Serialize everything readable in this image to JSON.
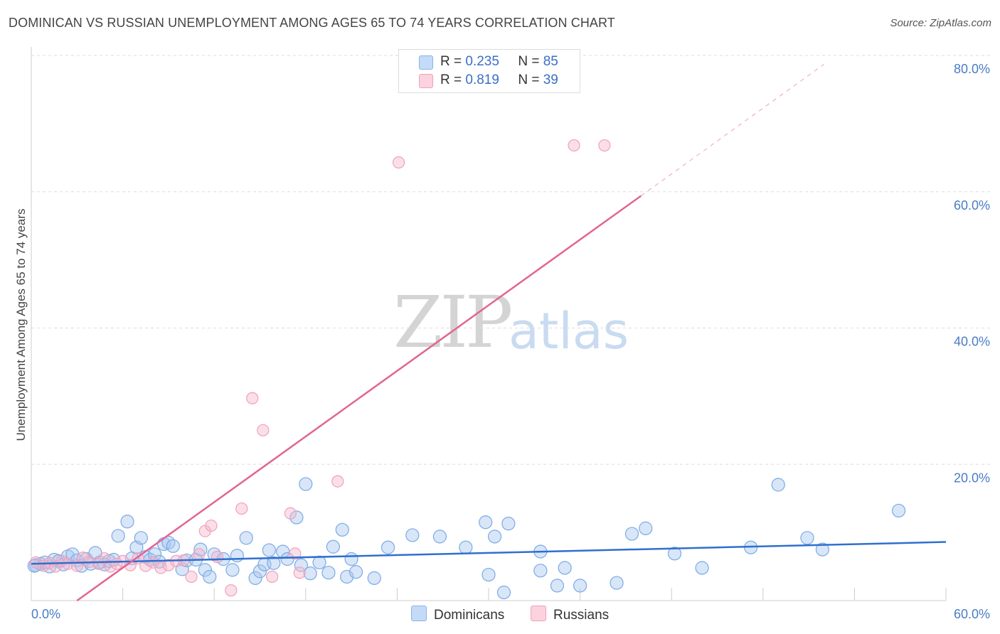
{
  "header": {
    "title": "DOMINICAN VS RUSSIAN UNEMPLOYMENT AMONG AGES 65 TO 74 YEARS CORRELATION CHART",
    "source": "Source: ZipAtlas.com"
  },
  "watermark": {
    "zip": "ZIP",
    "atlas": "atlas"
  },
  "legend": {
    "rows": [
      {
        "r_label": "R = ",
        "r_value": "0.235",
        "n_label": "N = ",
        "n_value": "85",
        "color": "#a8c8f0"
      },
      {
        "r_label": "R = ",
        "r_value": "0.819",
        "n_label": "N = ",
        "n_value": "39",
        "color": "#f5b8cc"
      }
    ]
  },
  "bottom_legend": [
    {
      "label": "Dominicans",
      "color": "#a8c8f0"
    },
    {
      "label": "Russians",
      "color": "#f5b8cc"
    }
  ],
  "chart_data": {
    "type": "scatter",
    "title": "DOMINICAN VS RUSSIAN UNEMPLOYMENT AMONG AGES 65 TO 74 YEARS CORRELATION CHART",
    "xlabel": "",
    "ylabel": "Unemployment Among Ages 65 to 74 years",
    "xlim": [
      0,
      60
    ],
    "ylim": [
      0,
      80
    ],
    "x_tick_labels": [
      "0.0%",
      "60.0%"
    ],
    "y_ticks": [
      20,
      40,
      60,
      80
    ],
    "y_tick_labels": [
      "20.0%",
      "40.0%",
      "60.0%",
      "80.0%"
    ],
    "grid": true,
    "legend_position": "top-center",
    "series": [
      {
        "name": "Dominicans",
        "color": "#7aaae6",
        "line_color": "#2f6fce",
        "trend": {
          "x": [
            0,
            60
          ],
          "y": [
            5.4,
            8.6
          ]
        },
        "points": [
          [
            0.3,
            5.2
          ],
          [
            0.6,
            5.4
          ],
          [
            0.9,
            5.6
          ],
          [
            1.2,
            5.0
          ],
          [
            1.5,
            6.0
          ],
          [
            1.8,
            5.8
          ],
          [
            2.1,
            5.3
          ],
          [
            2.4,
            6.5
          ],
          [
            2.7,
            6.8
          ],
          [
            3.0,
            5.9
          ],
          [
            3.3,
            5.1
          ],
          [
            3.6,
            6.1
          ],
          [
            3.9,
            5.4
          ],
          [
            4.2,
            7.0
          ],
          [
            4.5,
            5.6
          ],
          [
            4.8,
            5.3
          ],
          [
            5.1,
            5.8
          ],
          [
            5.4,
            6.0
          ],
          [
            5.7,
            9.5
          ],
          [
            6.3,
            11.6
          ],
          [
            6.6,
            6.2
          ],
          [
            6.9,
            7.8
          ],
          [
            7.2,
            9.2
          ],
          [
            7.5,
            6.4
          ],
          [
            7.8,
            6.0
          ],
          [
            8.1,
            6.8
          ],
          [
            8.4,
            5.7
          ],
          [
            8.7,
            8.3
          ],
          [
            9.0,
            8.5
          ],
          [
            9.3,
            8.0
          ],
          [
            9.9,
            4.6
          ],
          [
            10.2,
            5.9
          ],
          [
            10.8,
            6.0
          ],
          [
            11.1,
            7.5
          ],
          [
            11.4,
            4.5
          ],
          [
            11.7,
            3.5
          ],
          [
            12.0,
            6.8
          ],
          [
            12.6,
            6.1
          ],
          [
            13.2,
            4.5
          ],
          [
            13.5,
            6.6
          ],
          [
            14.1,
            9.2
          ],
          [
            14.7,
            3.3
          ],
          [
            15.0,
            4.3
          ],
          [
            15.3,
            5.3
          ],
          [
            15.6,
            7.4
          ],
          [
            15.9,
            5.5
          ],
          [
            16.5,
            7.2
          ],
          [
            16.8,
            6.1
          ],
          [
            17.4,
            12.2
          ],
          [
            17.7,
            5.2
          ],
          [
            18.0,
            17.1
          ],
          [
            18.3,
            4.0
          ],
          [
            18.9,
            5.6
          ],
          [
            19.5,
            4.1
          ],
          [
            19.8,
            7.9
          ],
          [
            20.4,
            10.4
          ],
          [
            20.7,
            3.5
          ],
          [
            21.0,
            6.1
          ],
          [
            21.3,
            4.2
          ],
          [
            22.5,
            3.3
          ],
          [
            23.4,
            7.8
          ],
          [
            25.0,
            9.6
          ],
          [
            26.8,
            9.4
          ],
          [
            28.5,
            7.8
          ],
          [
            29.8,
            11.5
          ],
          [
            30.0,
            3.8
          ],
          [
            30.4,
            9.4
          ],
          [
            31.0,
            1.2
          ],
          [
            31.3,
            11.3
          ],
          [
            33.4,
            7.2
          ],
          [
            33.4,
            4.4
          ],
          [
            34.5,
            2.2
          ],
          [
            35.0,
            4.8
          ],
          [
            36.0,
            2.2
          ],
          [
            38.4,
            2.6
          ],
          [
            39.4,
            9.8
          ],
          [
            40.3,
            10.6
          ],
          [
            42.2,
            6.9
          ],
          [
            44.0,
            4.8
          ],
          [
            47.2,
            7.8
          ],
          [
            49.0,
            17.0
          ],
          [
            50.9,
            9.2
          ],
          [
            51.9,
            7.5
          ],
          [
            56.9,
            13.2
          ],
          [
            0.2,
            5.1
          ]
        ]
      },
      {
        "name": "Russians",
        "color": "#f0a0bc",
        "line_color": "#e26493",
        "trend": {
          "x": [
            3.0,
            40.0
          ],
          "y": [
            0.0,
            59.4
          ]
        },
        "trend_dashed": {
          "x": [
            40.0,
            52.0
          ],
          "y": [
            59.4,
            78.7
          ]
        },
        "points": [
          [
            0.3,
            5.6
          ],
          [
            0.8,
            5.1
          ],
          [
            1.2,
            5.5
          ],
          [
            1.6,
            5.0
          ],
          [
            2.0,
            5.8
          ],
          [
            2.4,
            5.4
          ],
          [
            3.0,
            5.1
          ],
          [
            3.4,
            6.3
          ],
          [
            3.8,
            5.7
          ],
          [
            4.4,
            5.4
          ],
          [
            4.8,
            6.2
          ],
          [
            5.2,
            5.0
          ],
          [
            5.6,
            5.4
          ],
          [
            6.0,
            5.8
          ],
          [
            6.5,
            5.2
          ],
          [
            7.0,
            6.2
          ],
          [
            7.5,
            5.1
          ],
          [
            8.0,
            5.6
          ],
          [
            8.5,
            4.8
          ],
          [
            9.0,
            5.2
          ],
          [
            9.5,
            5.8
          ],
          [
            10.0,
            5.9
          ],
          [
            10.5,
            3.5
          ],
          [
            11.0,
            6.8
          ],
          [
            11.4,
            10.2
          ],
          [
            11.8,
            11.0
          ],
          [
            12.2,
            6.4
          ],
          [
            13.1,
            1.5
          ],
          [
            13.8,
            13.5
          ],
          [
            14.5,
            29.7
          ],
          [
            15.2,
            25.0
          ],
          [
            15.8,
            3.5
          ],
          [
            17.0,
            12.8
          ],
          [
            17.3,
            6.9
          ],
          [
            17.6,
            4.1
          ],
          [
            20.1,
            17.5
          ],
          [
            24.1,
            64.3
          ],
          [
            35.6,
            66.8
          ],
          [
            37.6,
            66.8
          ]
        ]
      }
    ]
  }
}
